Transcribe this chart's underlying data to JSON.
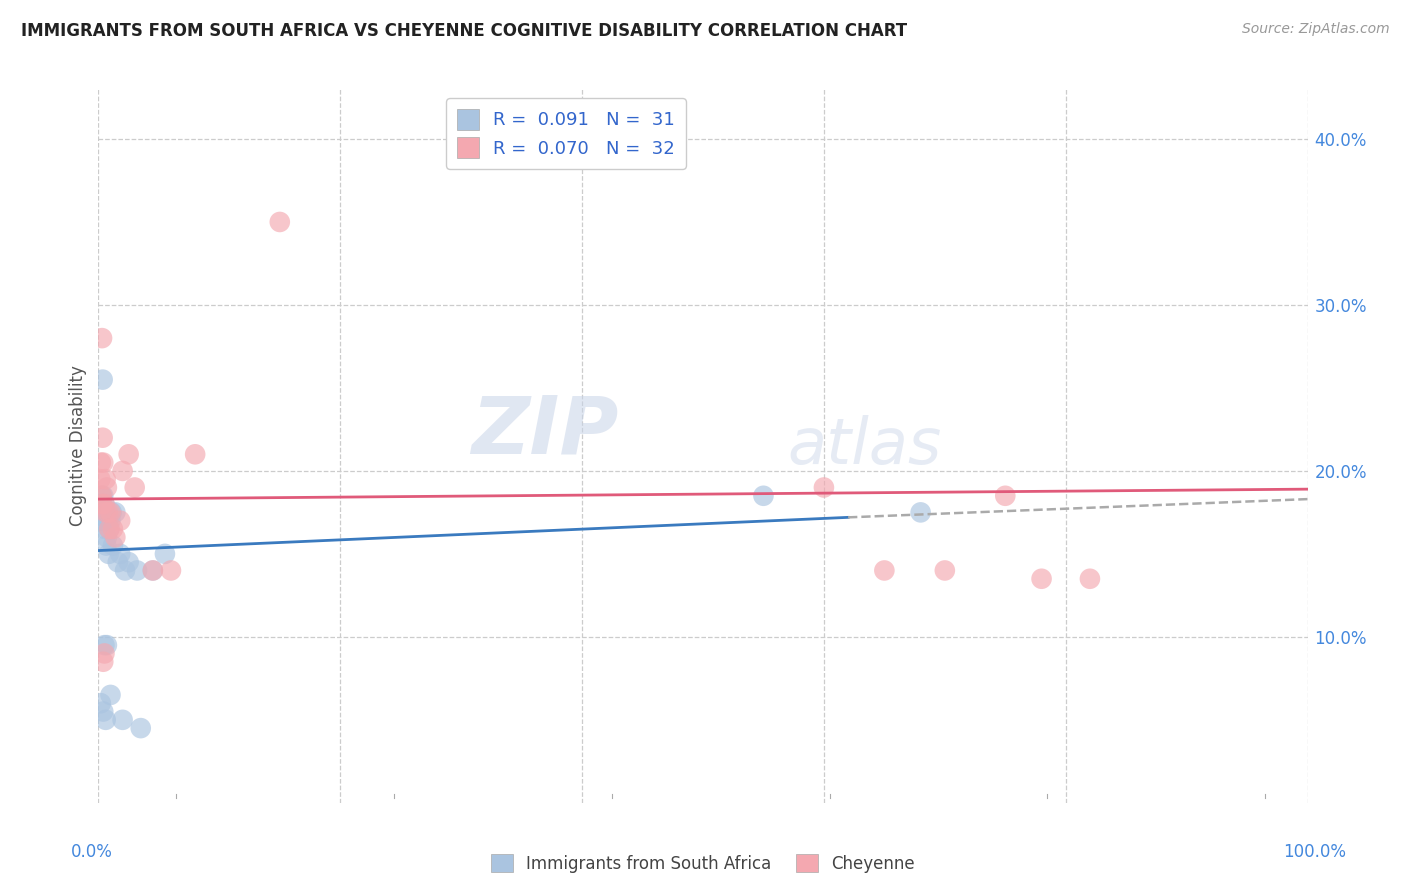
{
  "title": "IMMIGRANTS FROM SOUTH AFRICA VS CHEYENNE COGNITIVE DISABILITY CORRELATION CHART",
  "source": "Source: ZipAtlas.com",
  "ylabel": "Cognitive Disability",
  "xlim": [
    0,
    100
  ],
  "ylim": [
    0,
    43
  ],
  "yticks": [
    10,
    20,
    30,
    40
  ],
  "ytick_labels": [
    "10.0%",
    "20.0%",
    "30.0%",
    "40.0%"
  ],
  "xticks": [
    0,
    20,
    40,
    60,
    80,
    100
  ],
  "legend_r1": "0.091",
  "legend_n1": "31",
  "legend_r2": "0.070",
  "legend_n2": "32",
  "legend_label1": "Immigrants from South Africa",
  "legend_label2": "Cheyenne",
  "blue_dot_color": "#aac4e0",
  "pink_dot_color": "#f4a8b0",
  "blue_line_color": "#3a7abf",
  "pink_line_color": "#e05a7a",
  "dash_color": "#aaaaaa",
  "background": "#ffffff",
  "grid_color": "#cccccc",
  "blue_scatter_x": [
    0.15,
    0.2,
    0.25,
    0.3,
    0.35,
    0.4,
    0.45,
    0.5,
    0.55,
    0.6,
    0.65,
    0.7,
    0.8,
    0.85,
    0.9,
    1.0,
    1.1,
    1.2,
    1.4,
    1.6,
    1.8,
    2.2,
    2.5,
    3.2,
    4.5,
    5.5,
    0.35,
    0.5,
    0.7,
    55.0,
    68.0
  ],
  "blue_scatter_y": [
    17.5,
    17.0,
    18.0,
    18.5,
    17.5,
    18.5,
    17.0,
    18.0,
    16.5,
    17.5,
    15.5,
    16.0,
    17.0,
    15.0,
    16.5,
    17.0,
    17.5,
    15.5,
    17.5,
    14.5,
    15.0,
    14.0,
    14.5,
    14.0,
    14.0,
    15.0,
    25.5,
    9.5,
    9.5,
    18.5,
    17.5
  ],
  "blue_scatter_extra_x": [
    0.2,
    0.4,
    0.6,
    1.0,
    2.0,
    3.5
  ],
  "blue_scatter_extra_y": [
    6.0,
    5.5,
    5.0,
    6.5,
    5.0,
    4.5
  ],
  "pink_scatter_x": [
    0.15,
    0.2,
    0.25,
    0.3,
    0.35,
    0.4,
    0.5,
    0.6,
    0.7,
    0.8,
    1.0,
    1.2,
    1.4,
    1.8,
    2.5,
    3.0,
    4.5,
    6.0,
    0.3,
    0.5,
    2.0,
    8.0,
    0.4,
    60.0,
    75.0,
    82.0,
    65.0,
    70.0,
    78.0,
    15.0,
    0.6,
    0.9
  ],
  "pink_scatter_y": [
    19.5,
    20.5,
    18.5,
    18.0,
    22.0,
    20.5,
    18.0,
    17.5,
    19.0,
    17.5,
    17.5,
    16.5,
    16.0,
    17.0,
    21.0,
    19.0,
    14.0,
    14.0,
    28.0,
    9.0,
    20.0,
    21.0,
    8.5,
    19.0,
    18.5,
    13.5,
    14.0,
    14.0,
    13.5,
    35.0,
    19.5,
    16.5
  ],
  "blue_line_x0": 0,
  "blue_line_x1": 62,
  "blue_line_y0": 15.2,
  "blue_line_y1": 17.2,
  "blue_dash_x0": 62,
  "blue_dash_x1": 100,
  "blue_dash_y0": 17.2,
  "blue_dash_y1": 18.3,
  "pink_line_x0": 0,
  "pink_line_x1": 100,
  "pink_line_y0": 18.3,
  "pink_line_y1": 18.9,
  "watermark_zip": "ZIP",
  "watermark_atlas": "atlas",
  "figsize": [
    14.06,
    8.92
  ],
  "dpi": 100
}
